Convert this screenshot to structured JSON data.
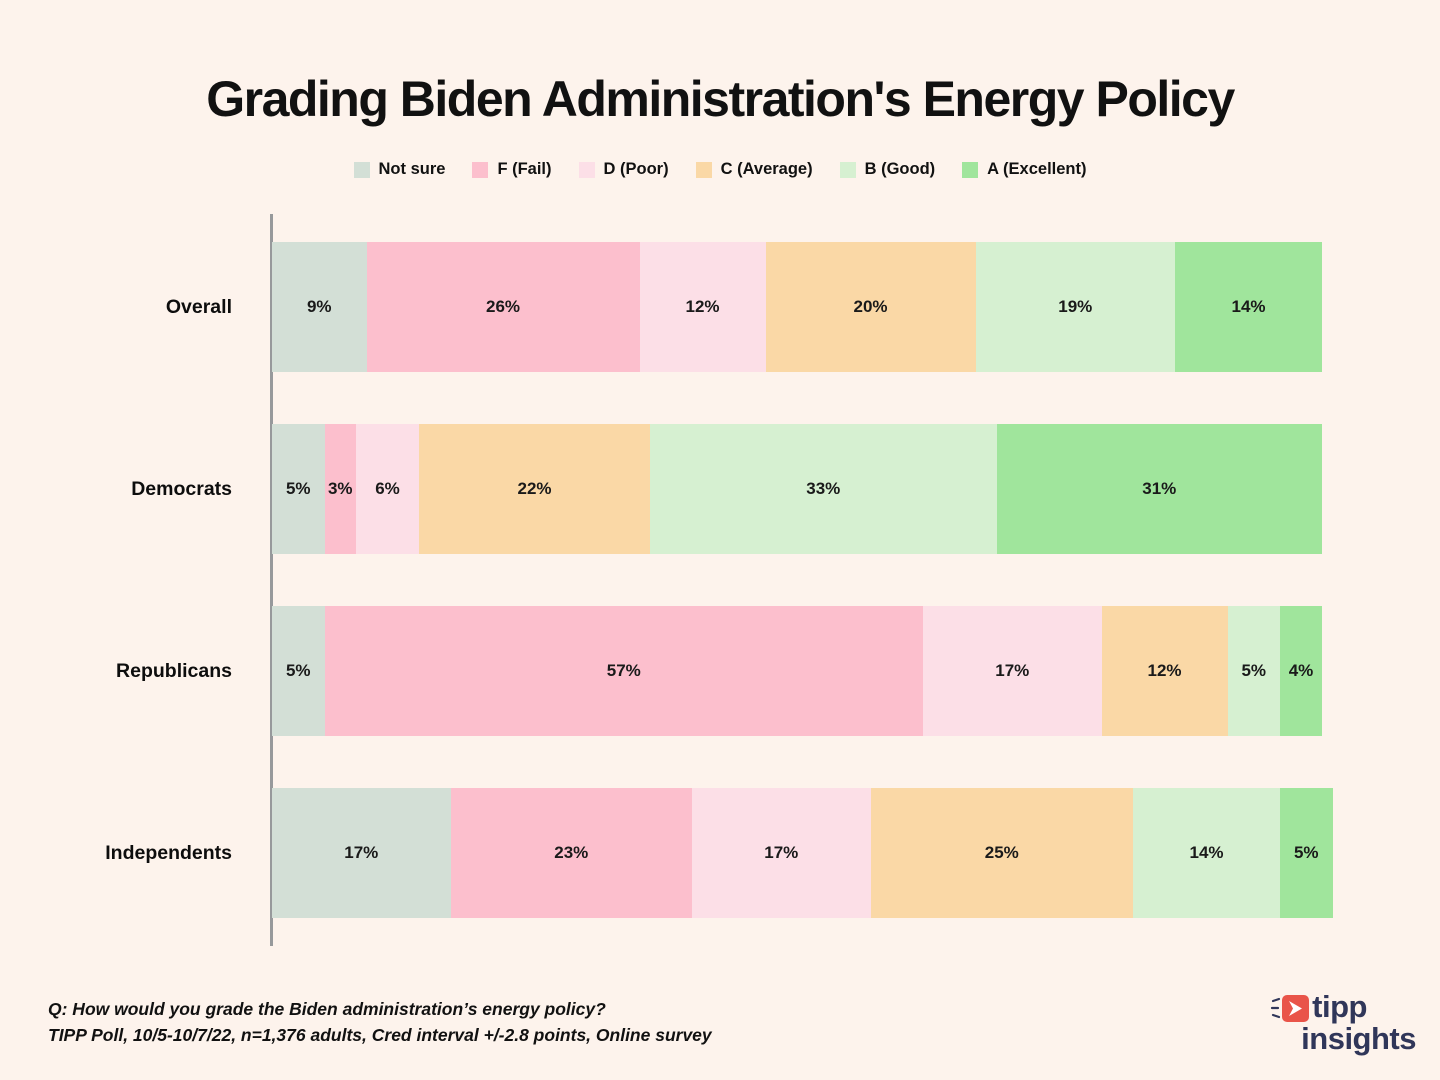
{
  "title": "Grading Biden Administration's Energy Policy",
  "chart_data": {
    "type": "bar",
    "stacked": true,
    "orientation": "horizontal",
    "title": "Grading Biden Administration's Energy Policy",
    "categories": [
      "Overall",
      "Democrats",
      "Republicans",
      "Independents"
    ],
    "series": [
      {
        "name": "Not sure",
        "color": "#D3DFD6",
        "values": [
          9,
          5,
          5,
          17
        ]
      },
      {
        "name": "F (Fail)",
        "color": "#FCBFCD",
        "values": [
          26,
          3,
          57,
          23
        ]
      },
      {
        "name": "D (Poor)",
        "color": "#FCDFE7",
        "values": [
          12,
          6,
          17,
          17
        ]
      },
      {
        "name": "C (Average)",
        "color": "#FAD8A6",
        "values": [
          20,
          22,
          12,
          25
        ]
      },
      {
        "name": "B (Good)",
        "color": "#D6F0D1",
        "values": [
          19,
          33,
          5,
          14
        ]
      },
      {
        "name": "A (Excellent)",
        "color": "#A0E59C",
        "values": [
          14,
          31,
          4,
          5
        ]
      }
    ],
    "value_suffix": "%",
    "xlim": [
      0,
      100
    ],
    "grid": false,
    "legend_position": "top",
    "pixels_per_percent": 10.5
  },
  "footer": {
    "question": "Q:  How would you grade the Biden administration’s energy policy?",
    "source": "TIPP Poll, 10/5-10/7/22, n=1,376 adults, Cred interval +/-2.8 points, Online survey"
  },
  "logo": {
    "line1": "tipp",
    "line2": "insights"
  },
  "colors": {
    "background": "#FDF3EC",
    "axis_line": "#97999B",
    "text": "#111111",
    "logo_navy": "#303659",
    "logo_red": "#E95449"
  }
}
